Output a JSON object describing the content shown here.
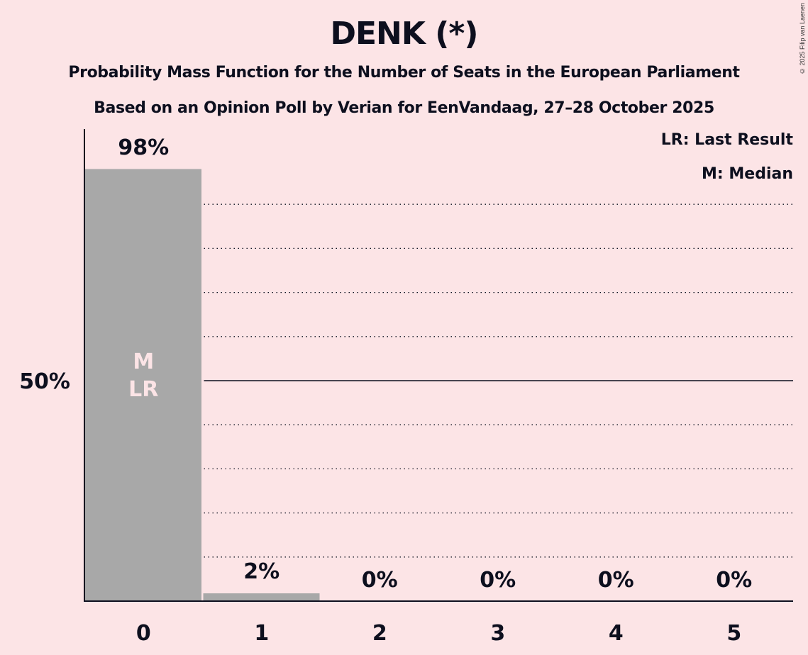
{
  "header": {
    "title": "DENK (*)",
    "subtitle_1": "Probability Mass Function for the Number of Seats in the European Parliament",
    "subtitle_2": "Based on an Opinion Poll by Verian for EenVandaag, 27–28 October 2025",
    "copyright": "© 2025 Filip van Laenen"
  },
  "legend": {
    "lr": "LR: Last Result",
    "m": "M: Median"
  },
  "y_axis": {
    "tick_label_50": "50%"
  },
  "bar_markers": {
    "median": "M",
    "last_result": "LR"
  },
  "colors": {
    "background": "#fce4e6",
    "bar": "#a8a8a8",
    "marker_text": "#fce4e6",
    "text": "#0d0f1e"
  },
  "chart_data": {
    "type": "bar",
    "title": "DENK (*)",
    "subtitle": "Probability Mass Function for the Number of Seats in the European Parliament — Based on an Opinion Poll by Verian for EenVandaag, 27–28 October 2025",
    "xlabel": "",
    "ylabel": "",
    "categories": [
      "0",
      "1",
      "2",
      "3",
      "4",
      "5"
    ],
    "values": [
      98,
      2,
      0,
      0,
      0,
      0
    ],
    "value_labels": [
      "98%",
      "2%",
      "0%",
      "0%",
      "0%",
      "0%"
    ],
    "ylim": [
      0,
      100
    ],
    "y_ticks_labeled": [
      50
    ],
    "gridlines": "dotted every 10%, solid at 50%",
    "median_seat": 0,
    "last_result_seat": 0,
    "legend": [
      "LR: Last Result",
      "M: Median"
    ],
    "legend_position": "top-right"
  }
}
